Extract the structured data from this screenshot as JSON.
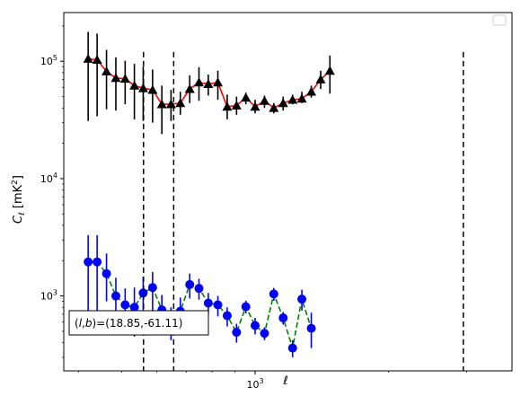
{
  "chart_data": {
    "type": "scatter",
    "xscale": "log",
    "yscale": "log",
    "xlim": [
      370,
      3800
    ],
    "ylim": [
      230,
      260000
    ],
    "xticks": [
      {
        "value": 1000,
        "base": "10",
        "exp": "3"
      }
    ],
    "yticks": [
      {
        "value": 1000,
        "base": "10",
        "exp": "3"
      },
      {
        "value": 10000,
        "base": "10",
        "exp": "4"
      },
      {
        "value": 100000,
        "base": "10",
        "exp": "5"
      }
    ],
    "xlabel": "ℓ",
    "ylabel_main": "C",
    "ylabel_sub": "ℓ",
    "ylabel_unit": "[mK",
    "ylabel_unit_sup": "2",
    "ylabel_unit_close": "]",
    "vlines": [
      560,
      655,
      2950
    ],
    "annotation": {
      "text_open": "(",
      "text_l": "l",
      "text_comma": ",",
      "text_b": "b",
      "text_rest": ")=(18.85,-61.11)"
    },
    "legend": {
      "entries": [],
      "placement": "top-right"
    },
    "series": [
      {
        "marker": "triangle",
        "line_color": "#ff0000",
        "line_style": "solid",
        "marker_color": "#000000",
        "errorbar_color": "#000000",
        "points": [
          {
            "x": 420,
            "y": 105000,
            "lo": 31000,
            "hi": 178000
          },
          {
            "x": 440,
            "y": 103000,
            "lo": 34000,
            "hi": 172000
          },
          {
            "x": 462,
            "y": 82000,
            "lo": 39000,
            "hi": 125000
          },
          {
            "x": 485,
            "y": 72000,
            "lo": 38000,
            "hi": 108000
          },
          {
            "x": 509,
            "y": 71000,
            "lo": 43000,
            "hi": 101000
          },
          {
            "x": 534,
            "y": 62000,
            "lo": 32000,
            "hi": 95000
          },
          {
            "x": 559,
            "y": 59000,
            "lo": 31000,
            "hi": 90000
          },
          {
            "x": 587,
            "y": 57000,
            "lo": 30000,
            "hi": 85000
          },
          {
            "x": 616,
            "y": 43000,
            "lo": 24000,
            "hi": 62000
          },
          {
            "x": 646,
            "y": 43000,
            "lo": 31000,
            "hi": 57000
          },
          {
            "x": 678,
            "y": 44000,
            "lo": 35000,
            "hi": 55000
          },
          {
            "x": 712,
            "y": 58000,
            "lo": 44000,
            "hi": 76000
          },
          {
            "x": 747,
            "y": 66000,
            "lo": 46000,
            "hi": 89000
          },
          {
            "x": 784,
            "y": 64000,
            "lo": 51000,
            "hi": 77000
          },
          {
            "x": 824,
            "y": 66000,
            "lo": 47000,
            "hi": 83000
          },
          {
            "x": 865,
            "y": 41000,
            "lo": 32000,
            "hi": 52000
          },
          {
            "x": 908,
            "y": 42000,
            "lo": 35000,
            "hi": 50000
          },
          {
            "x": 953,
            "y": 49000,
            "lo": 43000,
            "hi": 54000
          },
          {
            "x": 1000,
            "y": 41000,
            "lo": 36000,
            "hi": 47000
          },
          {
            "x": 1050,
            "y": 46000,
            "lo": 40000,
            "hi": 51000
          },
          {
            "x": 1102,
            "y": 40000,
            "lo": 36000,
            "hi": 44000
          },
          {
            "x": 1157,
            "y": 44000,
            "lo": 38000,
            "hi": 50000
          },
          {
            "x": 1215,
            "y": 47000,
            "lo": 43000,
            "hi": 52000
          },
          {
            "x": 1275,
            "y": 48000,
            "lo": 44000,
            "hi": 55000
          },
          {
            "x": 1339,
            "y": 55000,
            "lo": 49000,
            "hi": 62000
          },
          {
            "x": 1406,
            "y": 70000,
            "lo": 58000,
            "hi": 83000
          },
          {
            "x": 1475,
            "y": 83000,
            "lo": 53000,
            "hi": 112000
          }
        ]
      },
      {
        "marker": "circle",
        "line_color": "#008000",
        "line_style": "dashed",
        "marker_color": "#0000ff",
        "errorbar_color": "#0000ff",
        "points": [
          {
            "x": 420,
            "y": 1950,
            "lo": 580,
            "hi": 3300
          },
          {
            "x": 440,
            "y": 1950,
            "lo": 700,
            "hi": 3300
          },
          {
            "x": 462,
            "y": 1550,
            "lo": 900,
            "hi": 2300
          },
          {
            "x": 485,
            "y": 1000,
            "lo": 560,
            "hi": 1430
          },
          {
            "x": 509,
            "y": 840,
            "lo": 520,
            "hi": 1160
          },
          {
            "x": 534,
            "y": 800,
            "lo": 450,
            "hi": 1180
          },
          {
            "x": 559,
            "y": 1060,
            "lo": 650,
            "hi": 1450
          },
          {
            "x": 587,
            "y": 1180,
            "lo": 720,
            "hi": 1600
          },
          {
            "x": 616,
            "y": 760,
            "lo": 500,
            "hi": 1020
          },
          {
            "x": 646,
            "y": 610,
            "lo": 420,
            "hi": 800
          },
          {
            "x": 678,
            "y": 740,
            "lo": 510,
            "hi": 970
          },
          {
            "x": 712,
            "y": 1250,
            "lo": 950,
            "hi": 1550
          },
          {
            "x": 747,
            "y": 1160,
            "lo": 930,
            "hi": 1400
          },
          {
            "x": 784,
            "y": 870,
            "lo": 700,
            "hi": 1060
          },
          {
            "x": 824,
            "y": 840,
            "lo": 670,
            "hi": 1000
          },
          {
            "x": 865,
            "y": 680,
            "lo": 550,
            "hi": 800
          },
          {
            "x": 908,
            "y": 490,
            "lo": 400,
            "hi": 580
          },
          {
            "x": 953,
            "y": 810,
            "lo": 710,
            "hi": 910
          },
          {
            "x": 1000,
            "y": 560,
            "lo": 470,
            "hi": 650
          },
          {
            "x": 1050,
            "y": 480,
            "lo": 420,
            "hi": 540
          },
          {
            "x": 1102,
            "y": 1040,
            "lo": 910,
            "hi": 1170
          },
          {
            "x": 1157,
            "y": 650,
            "lo": 570,
            "hi": 730
          },
          {
            "x": 1215,
            "y": 360,
            "lo": 300,
            "hi": 420
          },
          {
            "x": 1275,
            "y": 940,
            "lo": 750,
            "hi": 1130
          },
          {
            "x": 1339,
            "y": 530,
            "lo": 360,
            "hi": 720
          }
        ]
      }
    ]
  }
}
